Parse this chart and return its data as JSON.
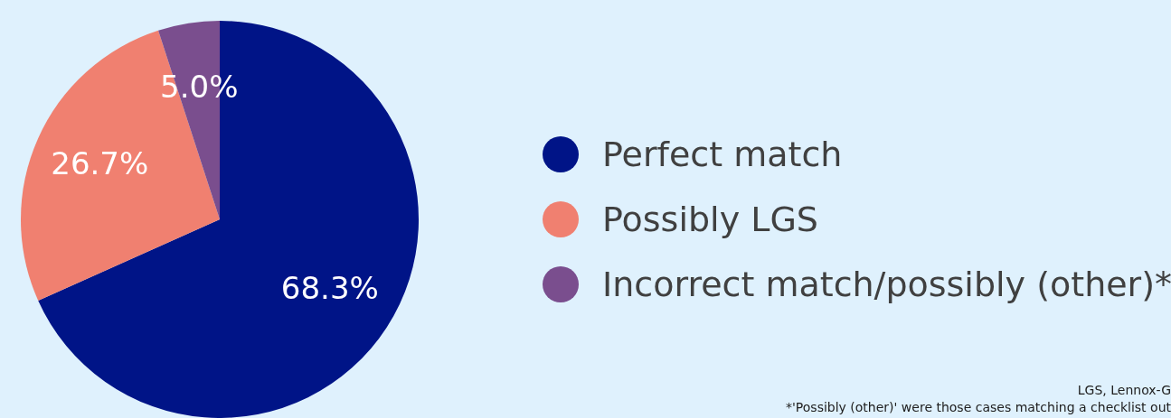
{
  "chart_data": {
    "type": "pie",
    "categories": [
      "Perfect match",
      "Possibly LGS",
      "Incorrect match/possibly (other)*"
    ],
    "values": [
      68.3,
      26.7,
      5.0
    ],
    "colors": [
      "#001487",
      "#f08070",
      "#7a4e8e"
    ],
    "value_labels": [
      "68.3%",
      "26.7%",
      "5.0%"
    ],
    "legend": "right",
    "annotations": [
      "LGS, Lennox-G",
      "*'Possibly (other)' were those cases matching a checklist out"
    ]
  }
}
